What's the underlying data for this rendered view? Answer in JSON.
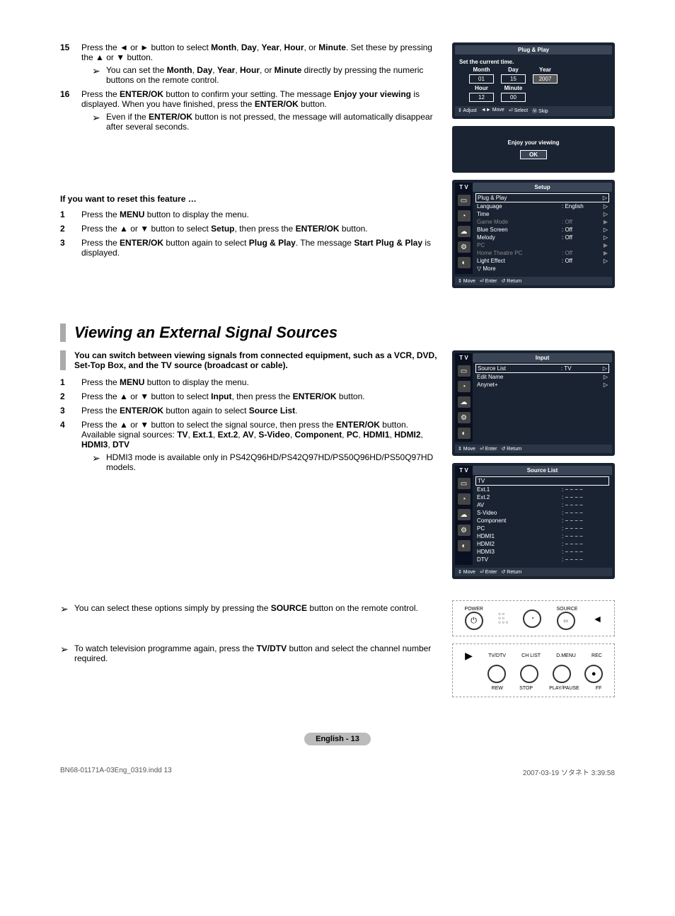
{
  "steps_top": [
    {
      "num": "15",
      "body": "Press the ◄ or ► button to select <b>Month</b>, <b>Day</b>, <b>Year</b>, <b>Hour</b>, or <b>Minute</b>. Set these by pressing the ▲ or ▼ button.",
      "notes": [
        "You can set the <b>Month</b>, <b>Day</b>, <b>Year</b>, <b>Hour</b>, or <b>Minute</b> directly by pressing the numeric buttons on the remote control."
      ]
    },
    {
      "num": "16",
      "body": "Press the <b>ENTER/OK</b> button to confirm your setting. The message <b>Enjoy your viewing</b> is displayed. When you have finished, press the <b>ENTER/OK</b> button.",
      "notes": [
        "Even if the <b>ENTER/OK</b> button is not pressed, the message will automatically disappear after several seconds."
      ]
    }
  ],
  "reset_heading": "If you want to reset this feature …",
  "reset_steps": [
    {
      "num": "1",
      "body": "Press the <b>MENU</b> button to display the menu."
    },
    {
      "num": "2",
      "body": "Press the ▲ or ▼ button to select <b>Setup</b>, then press the <b>ENTER/OK</b> button."
    },
    {
      "num": "3",
      "body": "Press the <b>ENTER/OK</b> button again to select <b>Plug & Play</b>. The message <b>Start Plug & Play</b> is displayed."
    }
  ],
  "main_title": "Viewing an External Signal Sources",
  "intro": "You can switch between viewing signals from connected equipment, such as a VCR, DVD, Set-Top Box, and the TV source (broadcast or cable).",
  "main_steps": [
    {
      "num": "1",
      "body": "Press the <b>MENU</b> button to display the menu."
    },
    {
      "num": "2",
      "body": "Press the ▲ or ▼ button to select <b>Input</b>, then press the <b>ENTER/OK</b> button."
    },
    {
      "num": "3",
      "body": "Press the <b>ENTER/OK</b> button again to select <b>Source List</b>."
    },
    {
      "num": "4",
      "body": "Press the ▲ or ▼ button to select the signal source, then press the <b>ENTER/OK</b> button.<br>Available signal sources: <b>TV</b>, <b>Ext.1</b>, <b>Ext.2</b>, <b>AV</b>, <b>S-Video</b>, <b>Component</b>, <b>PC</b>, <b>HDMI1</b>, <b>HDMI2</b>, <b>HDMI3</b>, <b>DTV</b>",
      "notes": [
        "HDMI3 mode is available only in PS42Q96HD/PS42Q97HD/PS50Q96HD/PS50Q97HD models."
      ]
    }
  ],
  "bottom_notes": [
    "You can select these options simply by pressing the <b>SOURCE</b> button on the remote control.",
    "To watch television programme again, press the <b>TV/DTV</b> button and select the channel number required."
  ],
  "osd1": {
    "title": "Plug & Play",
    "sub": "Set the current time.",
    "date_labels": [
      "Month",
      "Day",
      "Year"
    ],
    "date_vals": [
      "01",
      "15",
      "2007"
    ],
    "time_labels": [
      "Hour",
      "Minute"
    ],
    "time_vals": [
      "12",
      "00"
    ],
    "footer": [
      "⇕ Adjust",
      "◄► Move",
      "⏎ Select",
      "Ⓜ Skip"
    ]
  },
  "osd_enjoy": {
    "msg": "Enjoy your viewing",
    "ok": "OK"
  },
  "osd_setup": {
    "tv": "T V",
    "title": "Setup",
    "rows": [
      {
        "k": "Plug & Play",
        "v": "",
        "hl": true,
        "arr": "▷"
      },
      {
        "k": "Language",
        "v": ": English",
        "arr": "▷"
      },
      {
        "k": "Time",
        "v": "",
        "arr": "▷"
      },
      {
        "k": "Game Mode",
        "v": ": Off",
        "dim": true,
        "arr": "▶"
      },
      {
        "k": "Blue Screen",
        "v": ": Off",
        "arr": "▷"
      },
      {
        "k": "Melody",
        "v": ": Off",
        "arr": "▷"
      },
      {
        "k": "PC",
        "v": "",
        "dim": true,
        "arr": "▶"
      },
      {
        "k": "Home Theatre PC",
        "v": ": Off",
        "dim": true,
        "arr": "▶"
      },
      {
        "k": "Light Effect",
        "v": ": Off",
        "arr": "▷"
      },
      {
        "k": "▽ More",
        "v": "",
        "arr": ""
      }
    ],
    "footer": [
      "⇕ Move",
      "⏎ Enter",
      "↺ Return"
    ]
  },
  "osd_input": {
    "tv": "T V",
    "title": "Input",
    "rows": [
      {
        "k": "Source List",
        "v": ": TV",
        "hl": true,
        "arr": "▷"
      },
      {
        "k": "Edit Name",
        "v": "",
        "arr": "▷"
      },
      {
        "k": "Anynet+",
        "v": "",
        "arr": "▷"
      }
    ],
    "footer": [
      "⇕ Move",
      "⏎ Enter",
      "↺ Return"
    ]
  },
  "osd_source": {
    "tv": "T V",
    "title": "Source List",
    "rows": [
      {
        "k": "TV",
        "v": "",
        "hl": true
      },
      {
        "k": "Ext.1",
        "v": ": − − − −"
      },
      {
        "k": "Ext.2",
        "v": ": − − − −"
      },
      {
        "k": "AV",
        "v": ": − − − −"
      },
      {
        "k": "S-Video",
        "v": ": − − − −"
      },
      {
        "k": "Component",
        "v": ": − − − −"
      },
      {
        "k": "PC",
        "v": ": − − − −"
      },
      {
        "k": "HDMI1",
        "v": ": − − − −"
      },
      {
        "k": "HDMI2",
        "v": ": − − − −"
      },
      {
        "k": "HDMI3",
        "v": ": − − − −"
      },
      {
        "k": "DTV",
        "v": ": − − − −"
      }
    ],
    "footer": [
      "⇕ Move",
      "⏎ Enter",
      "↺ Return"
    ]
  },
  "remote1": {
    "power": "POWER",
    "source": "SOURCE"
  },
  "remote2": {
    "labels": [
      "TV/DTV",
      "CH LIST",
      "D.MENU",
      "REC",
      "REW",
      "STOP",
      "PLAY/PAUSE",
      "FF"
    ]
  },
  "page_label": "English - 13",
  "doc_meta": {
    "file": "BN68-01171A-03Eng_0319.indd   13",
    "date": "2007-03-19   ソタネト 3:39:58"
  }
}
